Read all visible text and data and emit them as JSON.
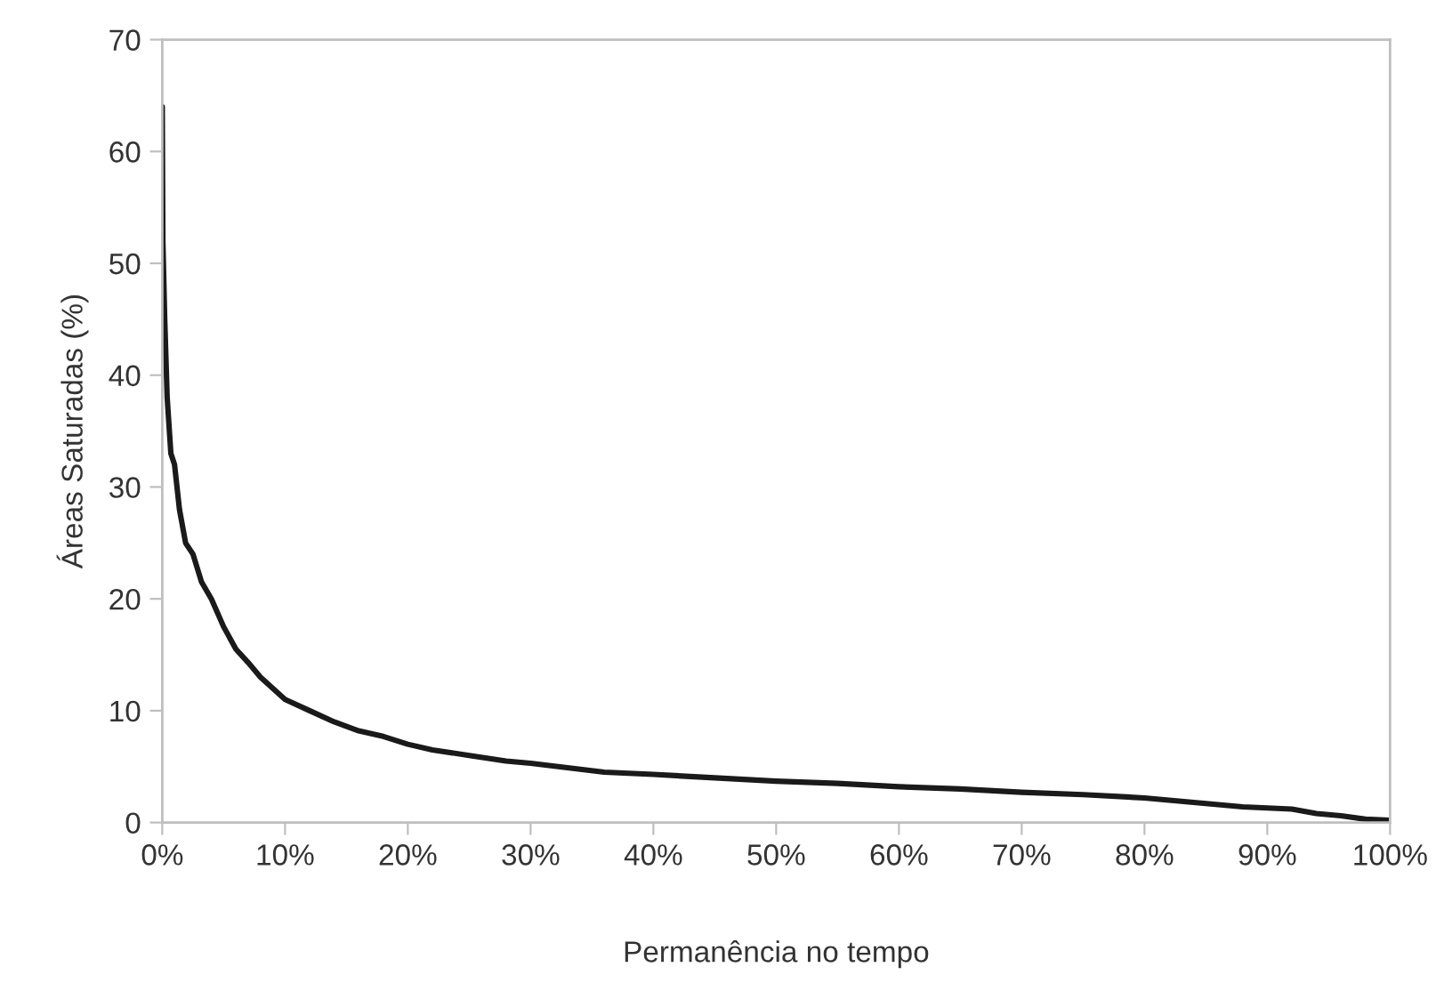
{
  "chart_data": {
    "type": "line",
    "xlabel": "Permanência no tempo",
    "ylabel": "Áreas Saturadas (%)",
    "x": [
      0,
      0.05,
      0.2,
      0.4,
      0.7,
      1.0,
      1.4,
      1.9,
      2.5,
      3.2,
      4,
      5,
      6,
      7,
      8,
      9,
      10,
      12,
      14,
      16,
      18,
      20,
      22,
      25,
      28,
      30,
      33,
      36,
      40,
      45,
      50,
      55,
      60,
      65,
      70,
      75,
      80,
      82,
      85,
      88,
      90,
      92,
      94,
      96,
      98,
      100
    ],
    "series": [
      {
        "color": "#1a1a1a",
        "values": [
          64,
          52,
          45,
          38,
          33,
          32,
          28,
          25,
          24,
          21.5,
          20,
          17.5,
          15.5,
          14.3,
          13,
          12,
          11,
          10,
          9,
          8.2,
          7.7,
          7,
          6.5,
          6,
          5.5,
          5.3,
          4.9,
          4.5,
          4.3,
          4,
          3.7,
          3.5,
          3.2,
          3.0,
          2.7,
          2.5,
          2.2,
          2.0,
          1.7,
          1.4,
          1.3,
          1.2,
          0.8,
          0.6,
          0.3,
          0.2
        ]
      }
    ],
    "xlim": [
      0,
      100
    ],
    "ylim": [
      0,
      70
    ],
    "xticks": [
      {
        "value": 0,
        "label": "0%"
      },
      {
        "value": 10,
        "label": "10%"
      },
      {
        "value": 20,
        "label": "20%"
      },
      {
        "value": 30,
        "label": "30%"
      },
      {
        "value": 40,
        "label": "40%"
      },
      {
        "value": 50,
        "label": "50%"
      },
      {
        "value": 60,
        "label": "60%"
      },
      {
        "value": 70,
        "label": "70%"
      },
      {
        "value": 80,
        "label": "80%"
      },
      {
        "value": 90,
        "label": "90%"
      },
      {
        "value": 100,
        "label": "100%"
      }
    ],
    "yticks": [
      0,
      10,
      20,
      30,
      40,
      50,
      60,
      70
    ],
    "grid": false,
    "legend": false,
    "marker": "none",
    "line_style": "solid"
  }
}
